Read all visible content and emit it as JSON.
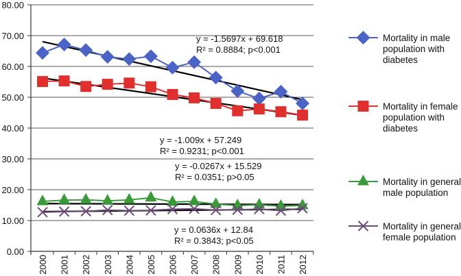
{
  "chart_data": {
    "type": "line",
    "title": "",
    "xlabel": "",
    "ylabel": "",
    "ylim": [
      0,
      80
    ],
    "y_ticks": [
      "0.00",
      "10.00",
      "20.00",
      "30.00",
      "40.00",
      "50.00",
      "60.00",
      "70.00",
      "80.00"
    ],
    "y_tick_values": [
      0,
      10,
      20,
      30,
      40,
      50,
      60,
      70,
      80
    ],
    "grid": true,
    "legend_position": "right",
    "categories": [
      "2000",
      "2001",
      "2002",
      "2003",
      "2004",
      "2005",
      "2006",
      "2007",
      "2008",
      "2009",
      "2010",
      "2011",
      "2012"
    ],
    "series": [
      {
        "name": "Mortality in male population with diabetes",
        "legend_lines": [
          "Mortality in male",
          "population with",
          "diabetes"
        ],
        "marker": "diamond",
        "color": "#4a63c4",
        "values": [
          64.4,
          67.1,
          65.3,
          63.1,
          62.4,
          63.3,
          59.6,
          61.4,
          56.4,
          52.0,
          49.6,
          51.8,
          48.0
        ],
        "trend": {
          "slope": -1.5697,
          "intercept": 69.618
        },
        "annotation": [
          "y = -1.5697x + 69.618",
          "R² = 0.8884; p<0.001"
        ]
      },
      {
        "name": "Mortality in female population with diabetes",
        "legend_lines": [
          "Mortality in female",
          "population with",
          "diabetes"
        ],
        "marker": "square",
        "color": "#e0302e",
        "values": [
          55.1,
          55.3,
          53.5,
          54.2,
          54.6,
          53.4,
          50.9,
          49.8,
          48.0,
          45.6,
          46.2,
          45.3,
          44.2
        ],
        "trend": {
          "slope": -1.009,
          "intercept": 57.249
        },
        "annotation": [
          "y = -1.009x + 57.249",
          "R² = 0.9231; p<0.001"
        ]
      },
      {
        "name": "Mortality in general male population",
        "legend_lines": [
          "Mortality in general",
          "male population"
        ],
        "marker": "triangle",
        "color": "#3a9a3a",
        "values": [
          16.2,
          16.6,
          16.7,
          16.4,
          16.7,
          17.4,
          16.0,
          16.2,
          15.3,
          14.9,
          15.1,
          14.7,
          14.9
        ],
        "trend": {
          "slope": -0.0267,
          "intercept": 15.529
        },
        "annotation": [
          "y = -0.0267x + 15.529",
          "R² = 0.0351; p>0.05"
        ]
      },
      {
        "name": "Mortality in general female population",
        "legend_lines": [
          "Mortality in general",
          "female population"
        ],
        "marker": "x",
        "color": "#6b4a78",
        "values": [
          12.7,
          12.9,
          13.0,
          13.4,
          13.2,
          13.3,
          13.7,
          13.8,
          13.4,
          13.5,
          13.7,
          13.2,
          14.0
        ],
        "trend": {
          "slope": 0.0636,
          "intercept": 12.84
        },
        "annotation": [
          "y = 0.0636x + 12.84",
          "R² = 0.3843; p<0.05"
        ]
      }
    ]
  }
}
